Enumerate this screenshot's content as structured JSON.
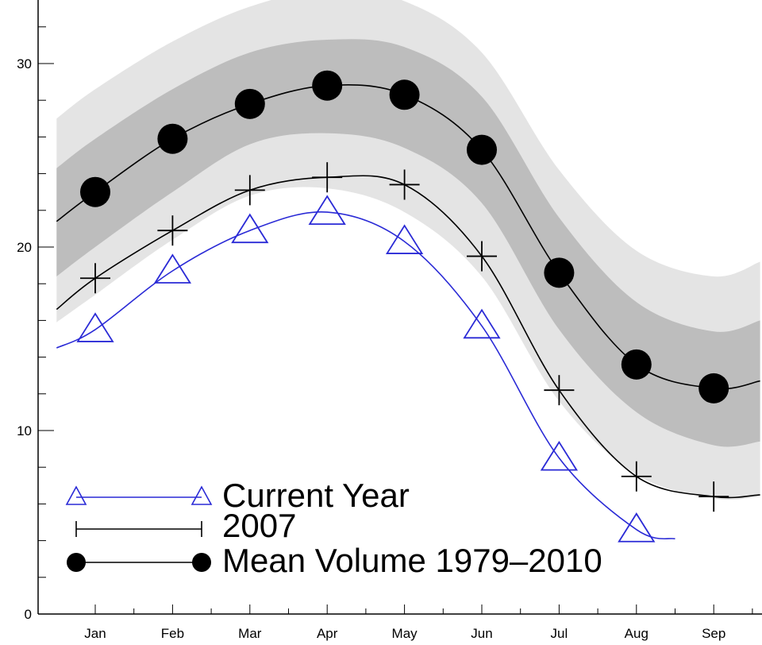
{
  "chart_data": {
    "type": "line",
    "title": "",
    "xlabel": "",
    "ylabel": "",
    "categories": [
      "Jan",
      "Feb",
      "Mar",
      "Apr",
      "May",
      "Jun",
      "Jul",
      "Aug",
      "Sep"
    ],
    "y_ticks": [
      0,
      10,
      20,
      30
    ],
    "ylim": [
      0,
      33
    ],
    "grid": false,
    "legend_position": "bottom-left",
    "bands": {
      "x": [
        0.5,
        1,
        2,
        3,
        4,
        5,
        6,
        7,
        8,
        9,
        9.6
      ],
      "outer_upper": [
        27.0,
        28.6,
        31.2,
        33.1,
        34.0,
        33.4,
        30.6,
        24.2,
        19.8,
        18.4,
        19.2
      ],
      "inner_upper": [
        24.3,
        25.9,
        28.6,
        30.6,
        31.3,
        30.9,
        28.2,
        21.6,
        17.0,
        15.4,
        16.0
      ],
      "inner_lower": [
        18.4,
        20.0,
        23.0,
        25.6,
        26.2,
        25.4,
        22.4,
        15.5,
        11.0,
        9.2,
        9.4
      ],
      "outer_lower": [
        15.9,
        17.4,
        20.4,
        22.8,
        23.2,
        21.9,
        18.4,
        11.6,
        7.6,
        6.3,
        6.4
      ]
    },
    "series": [
      {
        "name": "Current Year",
        "color": "#2a2ad6",
        "marker": "triangle",
        "x": [
          0.5,
          1,
          2,
          3,
          4,
          5,
          6,
          7,
          8,
          8.5
        ],
        "values": [
          14.5,
          15.5,
          18.7,
          20.9,
          21.9,
          20.3,
          15.7,
          8.5,
          4.6,
          4.1
        ]
      },
      {
        "name": "2007",
        "color": "#000000",
        "marker": "plus",
        "x": [
          0.5,
          1,
          2,
          3,
          4,
          5,
          6,
          7,
          8,
          9,
          9.6
        ],
        "values": [
          16.6,
          18.3,
          20.9,
          23.1,
          23.8,
          23.4,
          19.5,
          12.2,
          7.5,
          6.4,
          6.5
        ]
      },
      {
        "name": "Mean Volume 1979–2010",
        "color": "#000000",
        "marker": "circle",
        "x": [
          0.5,
          1,
          2,
          3,
          4,
          5,
          6,
          7,
          8,
          9,
          9.6
        ],
        "values": [
          21.4,
          23.0,
          25.9,
          27.8,
          28.8,
          28.3,
          25.3,
          18.6,
          13.6,
          12.3,
          12.7
        ]
      }
    ],
    "colors": {
      "outer_band": "#e4e4e4",
      "inner_band": "#bdbdbd",
      "axis": "#000000"
    }
  }
}
